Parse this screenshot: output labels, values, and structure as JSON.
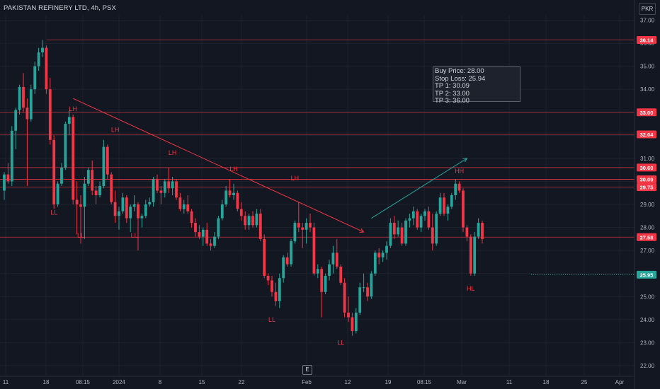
{
  "header": {
    "title": "PAKISTAN REFINERY LTD, 4h, PSX",
    "currency": "PKR"
  },
  "info_box": {
    "lines": [
      "Buy Price: 28.00",
      "Stop Loss: 25.94",
      "TP 1: 30.09",
      "TP 2: 33.00",
      "TP 3: 36.00"
    ]
  },
  "events_badge": "E",
  "colors": {
    "background": "#131722",
    "up": "#26a69a",
    "down": "#f23645",
    "grid": "#1e222d",
    "level_line": "#f23645",
    "support_tag": "#26a69a"
  },
  "chart_data": {
    "type": "candlestick",
    "title": "PAKISTAN REFINERY LTD, 4h, PSX",
    "ylim": [
      21.6,
      37.2
    ],
    "y_ticks": [
      22,
      23,
      24,
      25,
      26,
      27,
      28,
      29,
      30,
      31,
      32,
      33,
      34,
      35,
      36,
      37
    ],
    "x_ticks": [
      "11",
      "18",
      "08:15",
      "2024",
      "8",
      "15",
      "22",
      "Feb",
      "12",
      "19",
      "08:15",
      "Mar",
      "11",
      "18",
      "25",
      "Apr"
    ],
    "price_levels": [
      {
        "value": 36.14,
        "label": "36.14",
        "style": "dotted"
      },
      {
        "value": 33.0,
        "label": "33.00",
        "style": "dotted"
      },
      {
        "value": 32.04,
        "label": "32.04",
        "style": "dotted"
      },
      {
        "value": 30.6,
        "label": "30.60",
        "style": "dotted"
      },
      {
        "value": 30.09,
        "label": "30.09",
        "style": "dotted"
      },
      {
        "value": 30.09,
        "label": "30.09",
        "style": "dotted"
      },
      {
        "value": 29.75,
        "label": "29.75",
        "style": "dotted"
      },
      {
        "value": 27.58,
        "label": "27.58",
        "style": "dotted"
      },
      {
        "value": 25.95,
        "label": "25.95",
        "style": "support"
      }
    ],
    "annotations": [
      {
        "text": "LH",
        "x_index": 18,
        "y": 33.05
      },
      {
        "text": "LH",
        "x_index": 29,
        "y": 32.15
      },
      {
        "text": "LH",
        "x_index": 44,
        "y": 31.15
      },
      {
        "text": "LH",
        "x_index": 60,
        "y": 30.45
      },
      {
        "text": "LH",
        "x_index": 76,
        "y": 30.05
      },
      {
        "text": "HH",
        "x_index": 119,
        "y": 30.35
      },
      {
        "text": "LL",
        "x_index": 13,
        "y": 28.55
      },
      {
        "text": "LL",
        "x_index": 20,
        "y": 27.55
      },
      {
        "text": "LL",
        "x_index": 34,
        "y": 27.55
      },
      {
        "text": "LL",
        "x_index": 70,
        "y": 23.9
      },
      {
        "text": "LL",
        "x_index": 88,
        "y": 22.9
      },
      {
        "text": "HL",
        "x_index": 122,
        "y": 25.25
      }
    ],
    "trendlines": [
      {
        "from": {
          "x_index": 18,
          "y": 33.6
        },
        "to": {
          "x_index": 94,
          "y": 27.8
        },
        "color": "#f23645"
      },
      {
        "from": {
          "x_index": 96,
          "y": 28.4
        },
        "to": {
          "x_index": 121,
          "y": 31.0
        },
        "color": "#26a69a"
      }
    ],
    "candles": [
      {
        "o": 29.6,
        "h": 30.4,
        "l": 29.2,
        "c": 30.3
      },
      {
        "o": 30.3,
        "h": 30.8,
        "l": 29.9,
        "c": 30.0
      },
      {
        "o": 30.0,
        "h": 32.4,
        "l": 29.8,
        "c": 32.2
      },
      {
        "o": 32.2,
        "h": 33.2,
        "l": 31.4,
        "c": 33.1
      },
      {
        "o": 33.1,
        "h": 34.2,
        "l": 32.9,
        "c": 34.1
      },
      {
        "o": 34.1,
        "h": 34.7,
        "l": 33.0,
        "c": 33.2
      },
      {
        "o": 33.2,
        "h": 33.6,
        "l": 29.8,
        "c": 32.7
      },
      {
        "o": 32.7,
        "h": 34.2,
        "l": 32.6,
        "c": 34.0
      },
      {
        "o": 34.0,
        "h": 35.2,
        "l": 33.8,
        "c": 35.0
      },
      {
        "o": 35.0,
        "h": 35.8,
        "l": 34.8,
        "c": 35.6
      },
      {
        "o": 35.6,
        "h": 36.14,
        "l": 35.4,
        "c": 35.8
      },
      {
        "o": 35.8,
        "h": 35.9,
        "l": 33.8,
        "c": 34.0
      },
      {
        "o": 34.0,
        "h": 34.5,
        "l": 31.6,
        "c": 31.8
      },
      {
        "o": 31.8,
        "h": 32.0,
        "l": 28.8,
        "c": 29.0
      },
      {
        "o": 29.0,
        "h": 30.0,
        "l": 28.9,
        "c": 29.9
      },
      {
        "o": 29.9,
        "h": 30.8,
        "l": 29.8,
        "c": 30.6
      },
      {
        "o": 30.6,
        "h": 32.6,
        "l": 30.5,
        "c": 32.5
      },
      {
        "o": 32.5,
        "h": 33.1,
        "l": 32.0,
        "c": 32.8
      },
      {
        "o": 32.8,
        "h": 32.9,
        "l": 29.0,
        "c": 29.2
      },
      {
        "o": 29.2,
        "h": 30.0,
        "l": 27.7,
        "c": 29.0
      },
      {
        "o": 29.0,
        "h": 29.4,
        "l": 27.3,
        "c": 28.9
      },
      {
        "o": 28.9,
        "h": 30.2,
        "l": 27.5,
        "c": 29.9
      },
      {
        "o": 29.9,
        "h": 30.6,
        "l": 29.8,
        "c": 30.5
      },
      {
        "o": 30.5,
        "h": 30.9,
        "l": 29.4,
        "c": 29.6
      },
      {
        "o": 29.6,
        "h": 29.8,
        "l": 29.0,
        "c": 29.4
      },
      {
        "o": 29.4,
        "h": 30.0,
        "l": 29.3,
        "c": 29.8
      },
      {
        "o": 29.8,
        "h": 31.8,
        "l": 29.7,
        "c": 31.5
      },
      {
        "o": 31.5,
        "h": 31.6,
        "l": 30.1,
        "c": 30.3
      },
      {
        "o": 30.3,
        "h": 30.4,
        "l": 29.0,
        "c": 29.1
      },
      {
        "o": 29.1,
        "h": 29.6,
        "l": 28.2,
        "c": 28.5
      },
      {
        "o": 28.5,
        "h": 28.9,
        "l": 27.9,
        "c": 28.7
      },
      {
        "o": 28.7,
        "h": 29.5,
        "l": 28.6,
        "c": 29.3
      },
      {
        "o": 29.3,
        "h": 29.4,
        "l": 28.2,
        "c": 28.4
      },
      {
        "o": 28.4,
        "h": 29.0,
        "l": 27.8,
        "c": 28.9
      },
      {
        "o": 28.9,
        "h": 29.4,
        "l": 28.7,
        "c": 29.0
      },
      {
        "o": 29.0,
        "h": 29.1,
        "l": 27.0,
        "c": 28.4
      },
      {
        "o": 28.4,
        "h": 28.6,
        "l": 28.0,
        "c": 28.5
      },
      {
        "o": 28.5,
        "h": 29.2,
        "l": 28.4,
        "c": 29.0
      },
      {
        "o": 29.0,
        "h": 29.3,
        "l": 28.9,
        "c": 29.1
      },
      {
        "o": 29.1,
        "h": 30.2,
        "l": 28.9,
        "c": 30.1
      },
      {
        "o": 30.1,
        "h": 30.3,
        "l": 29.5,
        "c": 29.6
      },
      {
        "o": 29.6,
        "h": 29.8,
        "l": 29.0,
        "c": 29.5
      },
      {
        "o": 29.5,
        "h": 30.1,
        "l": 29.3,
        "c": 30.0
      },
      {
        "o": 30.0,
        "h": 30.6,
        "l": 29.5,
        "c": 29.7
      },
      {
        "o": 29.7,
        "h": 30.2,
        "l": 29.4,
        "c": 30.0
      },
      {
        "o": 30.0,
        "h": 30.1,
        "l": 29.2,
        "c": 29.3
      },
      {
        "o": 29.3,
        "h": 29.5,
        "l": 28.7,
        "c": 28.8
      },
      {
        "o": 28.8,
        "h": 29.2,
        "l": 28.6,
        "c": 29.0
      },
      {
        "o": 29.0,
        "h": 29.4,
        "l": 28.6,
        "c": 28.7
      },
      {
        "o": 28.7,
        "h": 28.8,
        "l": 28.0,
        "c": 28.2
      },
      {
        "o": 28.2,
        "h": 28.4,
        "l": 27.6,
        "c": 27.8
      },
      {
        "o": 27.8,
        "h": 28.1,
        "l": 27.5,
        "c": 27.6
      },
      {
        "o": 27.6,
        "h": 28.0,
        "l": 27.2,
        "c": 27.9
      },
      {
        "o": 27.9,
        "h": 28.2,
        "l": 27.2,
        "c": 27.3
      },
      {
        "o": 27.3,
        "h": 27.5,
        "l": 27.0,
        "c": 27.2
      },
      {
        "o": 27.2,
        "h": 27.8,
        "l": 27.1,
        "c": 27.6
      },
      {
        "o": 27.6,
        "h": 28.5,
        "l": 27.5,
        "c": 28.4
      },
      {
        "o": 28.4,
        "h": 29.2,
        "l": 28.3,
        "c": 29.0
      },
      {
        "o": 29.0,
        "h": 29.8,
        "l": 28.9,
        "c": 29.6
      },
      {
        "o": 29.6,
        "h": 30.1,
        "l": 29.3,
        "c": 29.4
      },
      {
        "o": 29.4,
        "h": 29.9,
        "l": 29.2,
        "c": 29.5
      },
      {
        "o": 29.5,
        "h": 29.6,
        "l": 28.7,
        "c": 28.8
      },
      {
        "o": 28.8,
        "h": 29.1,
        "l": 28.3,
        "c": 28.5
      },
      {
        "o": 28.5,
        "h": 28.7,
        "l": 27.9,
        "c": 28.1
      },
      {
        "o": 28.1,
        "h": 28.6,
        "l": 27.9,
        "c": 28.5
      },
      {
        "o": 28.5,
        "h": 28.7,
        "l": 28.0,
        "c": 28.1
      },
      {
        "o": 28.1,
        "h": 28.8,
        "l": 28.0,
        "c": 28.6
      },
      {
        "o": 28.6,
        "h": 28.8,
        "l": 27.4,
        "c": 27.5
      },
      {
        "o": 27.5,
        "h": 27.7,
        "l": 25.8,
        "c": 25.9
      },
      {
        "o": 25.9,
        "h": 26.0,
        "l": 25.5,
        "c": 25.7
      },
      {
        "o": 25.7,
        "h": 25.9,
        "l": 25.0,
        "c": 25.2
      },
      {
        "o": 25.2,
        "h": 25.6,
        "l": 24.6,
        "c": 24.8
      },
      {
        "o": 24.8,
        "h": 26.0,
        "l": 24.5,
        "c": 25.8
      },
      {
        "o": 25.8,
        "h": 26.8,
        "l": 25.6,
        "c": 26.7
      },
      {
        "o": 26.7,
        "h": 26.9,
        "l": 26.3,
        "c": 26.4
      },
      {
        "o": 26.4,
        "h": 27.5,
        "l": 26.3,
        "c": 27.4
      },
      {
        "o": 27.4,
        "h": 28.3,
        "l": 27.3,
        "c": 28.2
      },
      {
        "o": 28.2,
        "h": 29.1,
        "l": 27.8,
        "c": 28.0
      },
      {
        "o": 28.0,
        "h": 28.2,
        "l": 27.1,
        "c": 27.9
      },
      {
        "o": 27.9,
        "h": 28.4,
        "l": 27.3,
        "c": 28.2
      },
      {
        "o": 28.2,
        "h": 28.6,
        "l": 27.8,
        "c": 28.0
      },
      {
        "o": 28.0,
        "h": 28.2,
        "l": 25.9,
        "c": 26.0
      },
      {
        "o": 26.0,
        "h": 26.4,
        "l": 25.8,
        "c": 26.2
      },
      {
        "o": 26.2,
        "h": 26.3,
        "l": 24.1,
        "c": 25.2
      },
      {
        "o": 25.2,
        "h": 26.0,
        "l": 25.1,
        "c": 25.9
      },
      {
        "o": 25.9,
        "h": 26.6,
        "l": 25.7,
        "c": 26.4
      },
      {
        "o": 26.4,
        "h": 27.2,
        "l": 26.0,
        "c": 26.9
      },
      {
        "o": 26.9,
        "h": 27.5,
        "l": 26.2,
        "c": 26.3
      },
      {
        "o": 26.3,
        "h": 26.4,
        "l": 25.5,
        "c": 25.6
      },
      {
        "o": 25.6,
        "h": 25.8,
        "l": 24.1,
        "c": 24.3
      },
      {
        "o": 24.3,
        "h": 25.0,
        "l": 23.9,
        "c": 24.1
      },
      {
        "o": 24.1,
        "h": 24.3,
        "l": 23.3,
        "c": 23.5
      },
      {
        "o": 23.5,
        "h": 24.5,
        "l": 23.4,
        "c": 24.3
      },
      {
        "o": 24.3,
        "h": 25.6,
        "l": 24.2,
        "c": 25.4
      },
      {
        "o": 25.4,
        "h": 26.0,
        "l": 25.2,
        "c": 25.4
      },
      {
        "o": 25.4,
        "h": 25.6,
        "l": 24.8,
        "c": 25.0
      },
      {
        "o": 25.0,
        "h": 26.1,
        "l": 24.9,
        "c": 26.0
      },
      {
        "o": 26.0,
        "h": 27.0,
        "l": 25.9,
        "c": 26.9
      },
      {
        "o": 26.9,
        "h": 27.1,
        "l": 26.4,
        "c": 26.7
      },
      {
        "o": 26.7,
        "h": 27.0,
        "l": 26.5,
        "c": 26.9
      },
      {
        "o": 26.9,
        "h": 27.4,
        "l": 26.6,
        "c": 27.2
      },
      {
        "o": 27.2,
        "h": 28.4,
        "l": 27.1,
        "c": 28.2
      },
      {
        "o": 28.2,
        "h": 28.5,
        "l": 27.5,
        "c": 27.7
      },
      {
        "o": 27.7,
        "h": 28.3,
        "l": 27.6,
        "c": 28.0
      },
      {
        "o": 28.0,
        "h": 28.2,
        "l": 27.2,
        "c": 27.3
      },
      {
        "o": 27.3,
        "h": 28.4,
        "l": 27.2,
        "c": 28.3
      },
      {
        "o": 28.3,
        "h": 28.6,
        "l": 28.0,
        "c": 28.4
      },
      {
        "o": 28.4,
        "h": 28.9,
        "l": 28.1,
        "c": 28.7
      },
      {
        "o": 28.7,
        "h": 28.8,
        "l": 27.9,
        "c": 28.0
      },
      {
        "o": 28.0,
        "h": 28.6,
        "l": 27.8,
        "c": 28.5
      },
      {
        "o": 28.5,
        "h": 28.8,
        "l": 28.3,
        "c": 28.7
      },
      {
        "o": 28.7,
        "h": 28.9,
        "l": 27.9,
        "c": 28.0
      },
      {
        "o": 28.0,
        "h": 28.6,
        "l": 27.0,
        "c": 27.3
      },
      {
        "o": 27.3,
        "h": 28.7,
        "l": 27.2,
        "c": 28.6
      },
      {
        "o": 28.6,
        "h": 29.5,
        "l": 28.5,
        "c": 29.3
      },
      {
        "o": 29.3,
        "h": 29.5,
        "l": 28.5,
        "c": 28.6
      },
      {
        "o": 28.6,
        "h": 29.0,
        "l": 28.3,
        "c": 28.9
      },
      {
        "o": 28.9,
        "h": 29.5,
        "l": 28.8,
        "c": 29.4
      },
      {
        "o": 29.4,
        "h": 30.1,
        "l": 29.2,
        "c": 29.9
      },
      {
        "o": 29.9,
        "h": 30.0,
        "l": 29.5,
        "c": 29.6
      },
      {
        "o": 29.6,
        "h": 29.7,
        "l": 27.8,
        "c": 28.0
      },
      {
        "o": 28.0,
        "h": 28.1,
        "l": 27.4,
        "c": 27.6
      },
      {
        "o": 27.6,
        "h": 27.7,
        "l": 25.9,
        "c": 26.0
      },
      {
        "o": 26.0,
        "h": 27.8,
        "l": 25.9,
        "c": 27.6
      },
      {
        "o": 27.6,
        "h": 28.4,
        "l": 27.5,
        "c": 28.2
      },
      {
        "o": 28.2,
        "h": 28.3,
        "l": 27.3,
        "c": 27.5
      }
    ]
  }
}
